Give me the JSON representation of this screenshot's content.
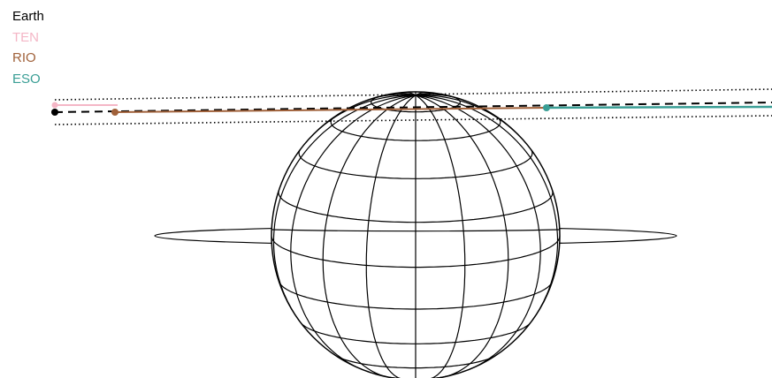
{
  "legend": [
    {
      "label": "Earth",
      "color": "#000000"
    },
    {
      "label": "TEN",
      "color": "#f4b6c6"
    },
    {
      "label": "RIO",
      "color": "#a0613a"
    },
    {
      "label": "ESO",
      "color": "#3a9e95"
    }
  ],
  "diagram": {
    "planet": "wireframe-globe-with-ring",
    "lines": [
      {
        "name": "earth-line",
        "style": "dashed",
        "color": "#000000"
      },
      {
        "name": "ten-line",
        "style": "solid",
        "color": "#f4b6c6"
      },
      {
        "name": "rio-line",
        "style": "solid",
        "color": "#a0613a"
      },
      {
        "name": "eso-line",
        "style": "solid",
        "color": "#3a9e95"
      },
      {
        "name": "upper-bound-line",
        "style": "dotted",
        "color": "#000000"
      },
      {
        "name": "lower-bound-line",
        "style": "dotted",
        "color": "#000000"
      }
    ]
  }
}
